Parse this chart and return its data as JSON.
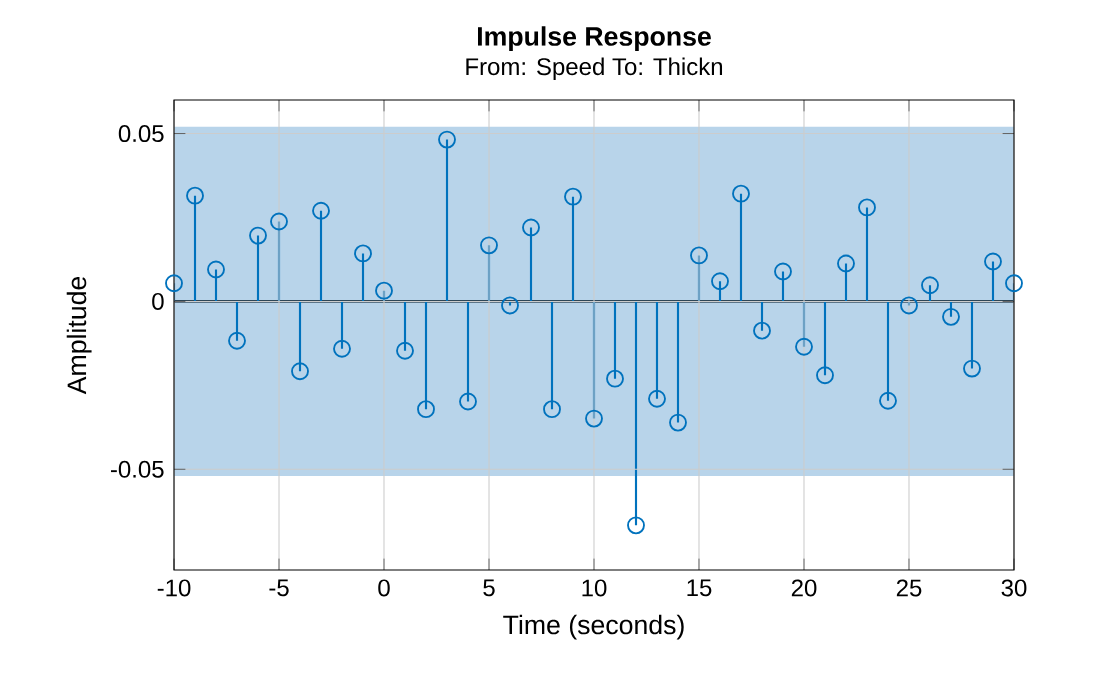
{
  "chart_data": {
    "type": "lollipop",
    "title": "Impulse Response",
    "subtitle": "From: Speed  To: Thickn",
    "xlabel": "Time (seconds)",
    "ylabel": "Amplitude",
    "x": [
      -10,
      -9,
      -8,
      -7,
      -6,
      -5,
      -4,
      -3,
      -2,
      -1,
      0,
      1,
      2,
      3,
      4,
      5,
      6,
      7,
      8,
      9,
      10,
      11,
      12,
      13,
      14,
      15,
      16,
      17,
      18,
      19,
      20,
      21,
      22,
      23,
      24,
      25,
      26,
      27,
      28,
      29,
      30
    ],
    "series": [
      {
        "color": "#0072bd",
        "values": [
          0.0054,
          0.0315,
          0.0095,
          -0.0117,
          0.0196,
          0.0238,
          -0.0208,
          0.027,
          -0.0141,
          0.0143,
          0.0032,
          -0.0147,
          -0.0321,
          0.0482,
          -0.0298,
          0.0167,
          -0.0012,
          0.022,
          -0.0321,
          0.0312,
          -0.0349,
          -0.023,
          -0.0667,
          -0.029,
          -0.0361,
          0.0137,
          0.006,
          0.0321,
          -0.0087,
          0.0089,
          -0.0135,
          -0.022,
          0.0113,
          0.028,
          -0.0296,
          -0.0012,
          0.0048,
          -0.0046,
          -0.02,
          0.0119,
          0.0054
        ]
      }
    ],
    "bands": [
      {
        "axis": "y",
        "from": -0.052,
        "to": 0.052,
        "color": "#b8d4ea"
      }
    ],
    "xlim": [
      -10,
      30
    ],
    "ylim": [
      -0.08,
      0.06
    ],
    "xticks": [
      -10,
      -5,
      0,
      5,
      10,
      15,
      20,
      25,
      30
    ],
    "yticks": [
      {
        "value": -0.05,
        "label": "-0.05"
      },
      0,
      {
        "value": 0.05,
        "label": "0.05"
      }
    ],
    "grid": true,
    "marker": "circle"
  }
}
